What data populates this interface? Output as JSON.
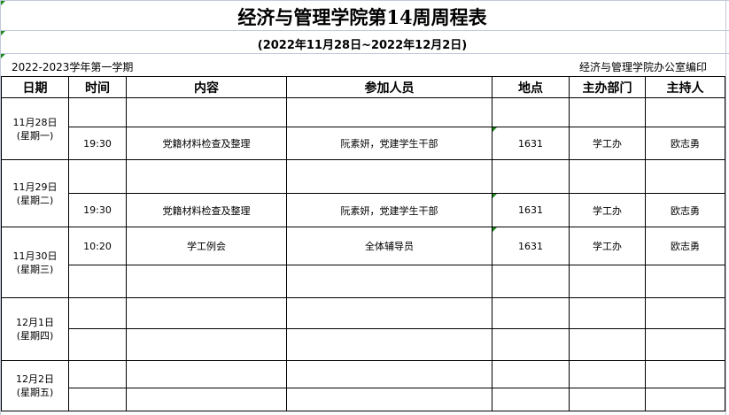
{
  "title": "经济与管理学院第14周周程表",
  "subtitle": "(2022年11月28日~2022年12月2日)",
  "term": "2022-2023学年第一学期",
  "editor": "经济与管理学院办公室编印",
  "headers": [
    "日期",
    "时间",
    "内容",
    "参加人员",
    "地点",
    "主办部门",
    "主持人"
  ],
  "days": [
    {
      "date": "11月28日",
      "weekday": "(星期一)",
      "rows": [
        [
          "",
          "",
          "",
          "",
          "",
          ""
        ],
        [
          "19:30",
          "党籍材料检查及整理",
          "阮素妍，党建学生干部",
          "1631",
          "学工办",
          "欧志勇"
        ]
      ]
    },
    {
      "date": "11月29日",
      "weekday": "(星期二)",
      "rows": [
        [
          "",
          "",
          "",
          "",
          "",
          ""
        ],
        [
          "19:30",
          "党籍材料检查及整理",
          "阮素妍，党建学生干部",
          "1631",
          "学工办",
          "欧志勇"
        ]
      ]
    },
    {
      "date": "11月30日",
      "weekday": "(星期三)",
      "rows": [
        [
          "10:20",
          "学工例会",
          "全体辅导员",
          "1631",
          "学工办",
          "欧志勇"
        ],
        [
          "",
          "",
          "",
          "",
          "",
          ""
        ]
      ]
    },
    {
      "date": "12月1日",
      "weekday": "(星期四)",
      "rows": [
        [
          "",
          "",
          "",
          "",
          "",
          ""
        ],
        [
          "",
          "",
          "",
          "",
          "",
          ""
        ]
      ]
    },
    {
      "date": "12月2日",
      "weekday": "(星期五)",
      "rows": [
        [
          "",
          "",
          "",
          "",
          "",
          ""
        ],
        [
          "",
          "",
          "",
          "",
          "",
          ""
        ]
      ]
    }
  ]
}
